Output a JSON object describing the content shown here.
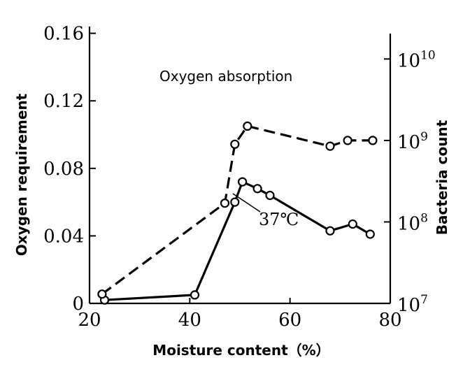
{
  "chart_data": {
    "type": "line",
    "xlabel": "Moisture content（%）",
    "ylabel_left": "Oxygen requirement",
    "ylabel_right": "Bacteria count",
    "x_ticks": [
      20,
      40,
      60,
      80
    ],
    "xlim": [
      20,
      80
    ],
    "y_left_ticks": [
      "0",
      "0.04",
      "0.08",
      "0.12",
      "0.16"
    ],
    "y_left_tick_values": [
      0,
      0.04,
      0.08,
      0.12,
      0.16
    ],
    "ylim_left": [
      0,
      0.164
    ],
    "y_right_scale": "log",
    "y_right_ticks": [
      {
        "value": 10000000,
        "base": "10",
        "exp": "7"
      },
      {
        "value": 100000000,
        "base": "10",
        "exp": "8"
      },
      {
        "value": 1000000000,
        "base": "10",
        "exp": "9"
      },
      {
        "value": 10000000000,
        "base": "10",
        "exp": "10"
      }
    ],
    "ylim_right": [
      10000000,
      25000000000
    ],
    "annotations": {
      "oxygen_label": "Oxygen absorption",
      "bacteria_label": "37℃"
    },
    "series": [
      {
        "axis": "left",
        "style": "solid",
        "x": [
          23,
          41,
          49,
          50.5,
          53.5,
          56,
          68,
          72.5,
          76
        ],
        "y": [
          0.002,
          0.005,
          0.06,
          0.072,
          0.068,
          0.064,
          0.043,
          0.047,
          0.041
        ]
      },
      {
        "axis": "right",
        "style": "dashed",
        "x": [
          22.5,
          47,
          49,
          51.5,
          68,
          71.5,
          76.5
        ],
        "y": [
          13000000,
          170000000,
          900000000,
          1500000000,
          850000000,
          1000000000,
          1000000000
        ]
      }
    ]
  }
}
